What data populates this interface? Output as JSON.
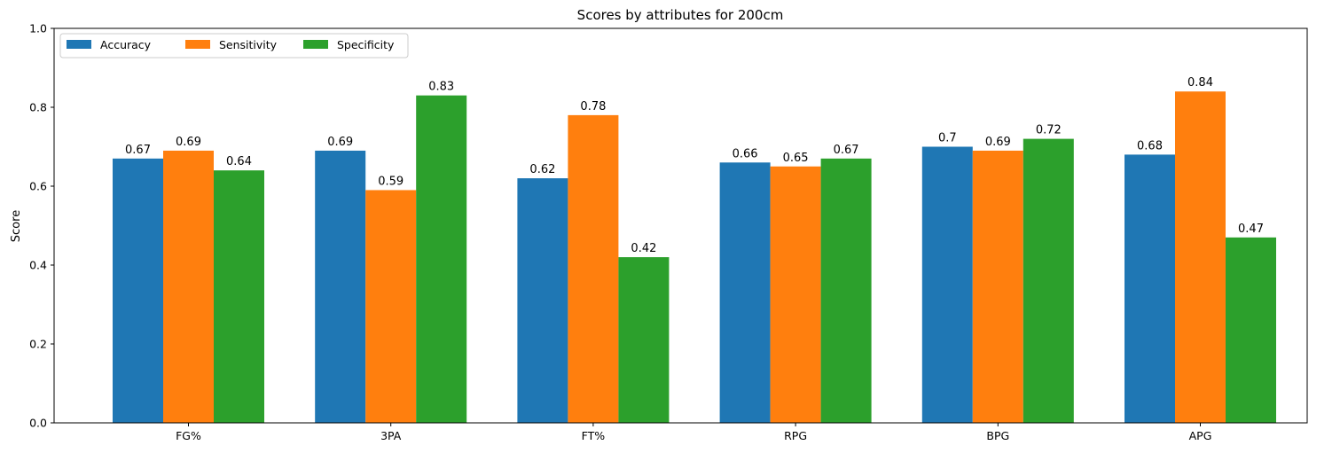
{
  "chart_data": {
    "type": "bar",
    "title": "Scores by attributes for 200cm",
    "xlabel": "",
    "ylabel": "Score",
    "ylim": [
      0,
      1.0
    ],
    "yticks": [
      "0.0",
      "0.2",
      "0.4",
      "0.6",
      "0.8",
      "1.0"
    ],
    "categories": [
      "FG%",
      "3PA",
      "FT%",
      "RPG",
      "BPG",
      "APG"
    ],
    "series": [
      {
        "name": "Accuracy",
        "color": "#1f77b4",
        "values": [
          0.67,
          0.69,
          0.62,
          0.66,
          0.7,
          0.68
        ]
      },
      {
        "name": "Sensitivity",
        "color": "#ff7f0e",
        "values": [
          0.69,
          0.59,
          0.78,
          0.65,
          0.69,
          0.84
        ]
      },
      {
        "name": "Specificity",
        "color": "#2ca02c",
        "values": [
          0.64,
          0.83,
          0.42,
          0.67,
          0.72,
          0.47
        ]
      }
    ],
    "legend_position": "top-left",
    "grid": false
  }
}
